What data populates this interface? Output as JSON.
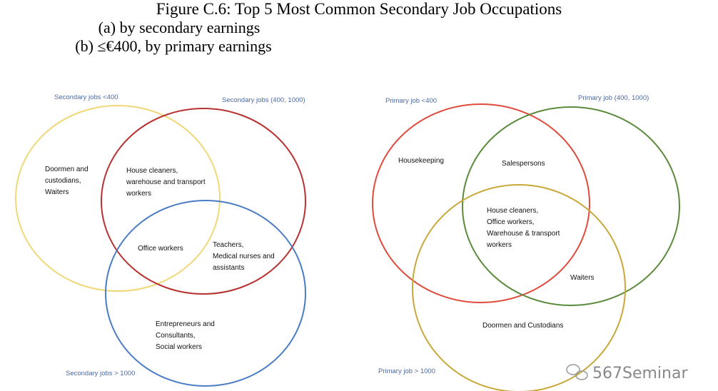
{
  "figure_title": "Figure C.6: Top 5 Most Common Secondary Job Occupations",
  "panel_a": {
    "subtitle": "(a) by secondary earnings",
    "sets": [
      {
        "label": "Secondary jobs <400",
        "color": "#f0d878"
      },
      {
        "label": "Secondary jobs (400, 1000)",
        "color": "#b83232"
      },
      {
        "label": "Secondary jobs > 1000",
        "color": "#4a7cc4"
      }
    ],
    "regions": [
      {
        "sets": [
          "<400"
        ],
        "lines": [
          "Doormen and",
          "custodians,",
          "Waiters"
        ]
      },
      {
        "sets": [
          "<400",
          "(400, 1000)"
        ],
        "lines": [
          "House cleaners,",
          "warehouse and transport",
          "workers"
        ]
      },
      {
        "sets": [
          "<400",
          "(400, 1000)",
          "> 1000"
        ],
        "lines": [
          "Office workers"
        ]
      },
      {
        "sets": [
          "(400, 1000)",
          "> 1000"
        ],
        "lines": [
          "Teachers,",
          "Medical nurses and",
          "assistants"
        ]
      },
      {
        "sets": [
          "> 1000"
        ],
        "lines": [
          "Entrepreneurs and",
          "Consultants,",
          "Social workers"
        ]
      }
    ]
  },
  "panel_b": {
    "subtitle": "(b) ≤€400, by primary earnings",
    "sets": [
      {
        "label": "Primary job <400",
        "color": "#e04a3c"
      },
      {
        "label": "Primary job (400, 1000)",
        "color": "#5a8a3a"
      },
      {
        "label": "Primary job > 1000",
        "color": "#c8a83a"
      }
    ],
    "regions": [
      {
        "sets": [
          "<400"
        ],
        "lines": [
          "Housekeeping"
        ]
      },
      {
        "sets": [
          "(400, 1000)"
        ],
        "lines": [
          "Salespersons"
        ]
      },
      {
        "sets": [
          "<400",
          "(400, 1000)",
          "> 1000"
        ],
        "lines": [
          "House cleaners,",
          "Office workers,",
          "Warehouse & transport",
          "workers"
        ]
      },
      {
        "sets": [
          "(400, 1000)",
          "> 1000"
        ],
        "lines": [
          "Waiters"
        ]
      },
      {
        "sets": [
          "> 1000"
        ],
        "lines": [
          "Doormen and Custodians"
        ]
      }
    ]
  },
  "watermark": "567Seminar"
}
